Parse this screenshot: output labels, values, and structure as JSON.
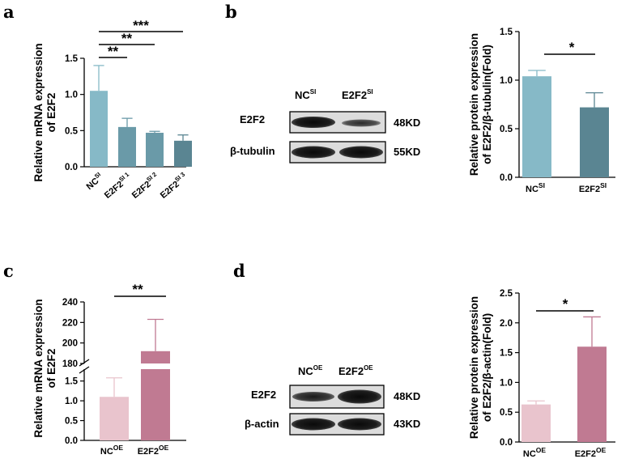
{
  "panels": {
    "a": "a",
    "b": "b",
    "c": "c",
    "d": "d"
  },
  "colors": {
    "teal_light": "#86b9c7",
    "teal_mid": "#6a9aa8",
    "teal_dark": "#5a8592",
    "pink_light": "#e9c4cd",
    "pink_dark": "#c07a92"
  },
  "chart_data": [
    {
      "id": "a",
      "type": "bar",
      "ylabel_line1": "Relative mRNA expression",
      "ylabel_line2": "of E2F2",
      "ylim": [
        0,
        1.5
      ],
      "yticks": [
        "0.0",
        "0.5",
        "1.0",
        "1.5"
      ],
      "ytick_values": [
        0,
        0.5,
        1.0,
        1.5
      ],
      "categories": [
        {
          "base": "NC",
          "sup": "SI"
        },
        {
          "base": "E2F2",
          "sup": "SI 1"
        },
        {
          "base": "E2F2",
          "sup": "SI 2"
        },
        {
          "base": "E2F2",
          "sup": "SI 3"
        }
      ],
      "values": [
        1.05,
        0.55,
        0.47,
        0.36
      ],
      "errors": [
        0.35,
        0.12,
        0.02,
        0.08
      ],
      "significance": [
        "**",
        "**",
        "***"
      ]
    },
    {
      "id": "b",
      "type": "bar",
      "ylabel_line1": "Relative protein expression",
      "ylabel_line2": "of E2F2/β-tubulin(Fold)",
      "ylim": [
        0,
        1.5
      ],
      "yticks": [
        "0.0",
        "0.5",
        "1.0",
        "1.5"
      ],
      "ytick_values": [
        0,
        0.5,
        1.0,
        1.5
      ],
      "categories": [
        {
          "base": "NC",
          "sup": "SI"
        },
        {
          "base": "E2F2",
          "sup": "SI"
        }
      ],
      "values": [
        1.04,
        0.72
      ],
      "errors": [
        0.06,
        0.15
      ],
      "significance": [
        "*"
      ]
    },
    {
      "id": "c",
      "type": "bar",
      "ylabel_line1": "Relative mRNA expression",
      "ylabel_line2": "of E2F2",
      "axis_break": true,
      "lower_ylim": [
        0,
        1.8
      ],
      "upper_ylim": [
        180,
        240
      ],
      "yticks_lower": [
        "0.0",
        "0.5",
        "1.0",
        "1.5"
      ],
      "ytick_values_lower": [
        0,
        0.5,
        1.0,
        1.5
      ],
      "yticks_upper": [
        "180",
        "200",
        "220",
        "240"
      ],
      "ytick_values_upper": [
        180,
        200,
        220,
        240
      ],
      "categories": [
        {
          "base": "NC",
          "sup": "OE"
        },
        {
          "base": "E2F2",
          "sup": "OE"
        }
      ],
      "values": [
        1.1,
        192
      ],
      "error_tops": [
        1.58,
        223
      ],
      "significance": [
        "**"
      ]
    },
    {
      "id": "d",
      "type": "bar",
      "ylabel_line1": "Relative protein expression",
      "ylabel_line2": "of E2F2/β-actin(Fold)",
      "ylim": [
        0,
        2.5
      ],
      "yticks": [
        "0.0",
        "0.5",
        "1.0",
        "1.5",
        "2.0",
        "2.5"
      ],
      "ytick_values": [
        0,
        0.5,
        1.0,
        1.5,
        2.0,
        2.5
      ],
      "categories": [
        {
          "base": "NC",
          "sup": "OE"
        },
        {
          "base": "E2F2",
          "sup": "OE"
        }
      ],
      "values": [
        0.63,
        1.6
      ],
      "errors": [
        0.06,
        0.5
      ],
      "significance": [
        "*"
      ]
    }
  ],
  "blots": {
    "b": {
      "lanes": [
        {
          "base": "NC",
          "sup": "SI"
        },
        {
          "base": "E2F2",
          "sup": "SI"
        }
      ],
      "rows": [
        {
          "name": "E2F2",
          "size": "48KD"
        },
        {
          "name": "β-tubulin",
          "size": "55KD"
        }
      ]
    },
    "d": {
      "lanes": [
        {
          "base": "NC",
          "sup": "OE"
        },
        {
          "base": "E2F2",
          "sup": "OE"
        }
      ],
      "rows": [
        {
          "name": "E2F2",
          "size": "48KD"
        },
        {
          "name": "β-actin",
          "size": "43KD"
        }
      ]
    }
  }
}
